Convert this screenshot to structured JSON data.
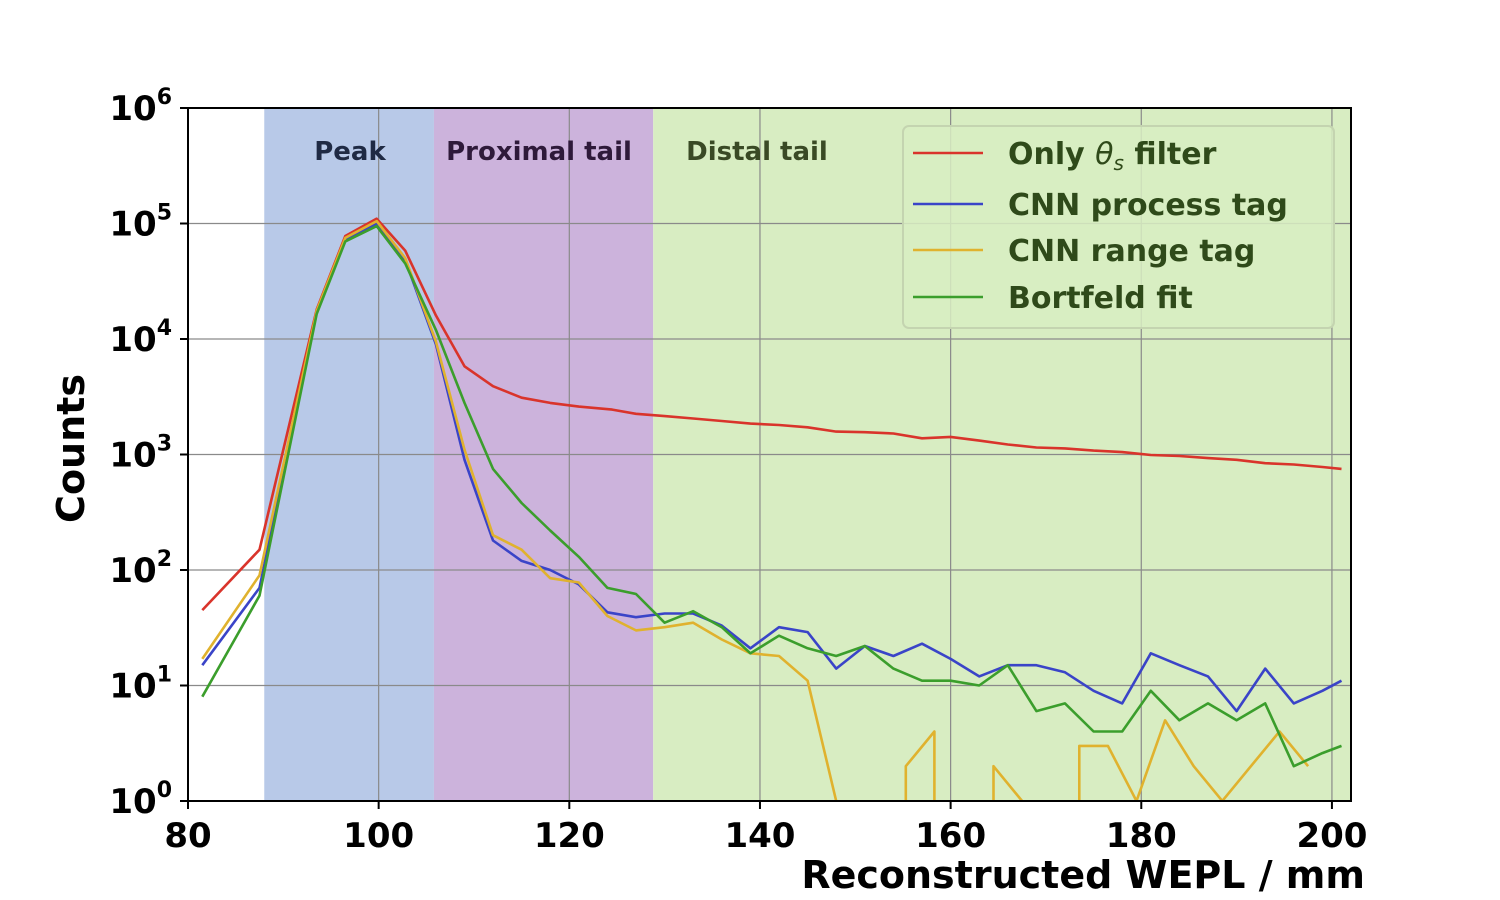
{
  "chart_data": {
    "type": "line",
    "xlabel": "Reconstructed WEPL / mm",
    "ylabel": "Counts",
    "xlim": [
      80,
      202
    ],
    "ylim": [
      1,
      1000000
    ],
    "yscale": "log",
    "grid": true,
    "legend_position": "top-right",
    "x_ticks": [
      "80",
      "100",
      "120",
      "140",
      "160",
      "180",
      "200"
    ],
    "y_ticks": [
      {
        "base": "10",
        "exp": "0"
      },
      {
        "base": "10",
        "exp": "1"
      },
      {
        "base": "10",
        "exp": "2"
      },
      {
        "base": "10",
        "exp": "3"
      },
      {
        "base": "10",
        "exp": "4"
      },
      {
        "base": "10",
        "exp": "5"
      },
      {
        "base": "10",
        "exp": "6"
      }
    ],
    "regions": [
      {
        "label": "Peak",
        "x0": 88,
        "x1": 105.8,
        "color": "#b8c9e8",
        "label_color": "#1f2a44"
      },
      {
        "label": "Proximal tail",
        "x0": 105.8,
        "x1": 128.8,
        "color": "#ccb3dc",
        "label_color": "#2e1a3a"
      },
      {
        "label": "Distal tail",
        "x0": 128.8,
        "x1": 202,
        "color": "#d8edc2",
        "label_color": "#3a4a25"
      }
    ],
    "series": [
      {
        "name": "Only θs filter",
        "color": "#d9342b",
        "x": [
          81.5,
          87.5,
          93.5,
          96.5,
          99.8,
          102.8,
          106,
          109,
          112,
          115,
          118,
          121,
          124.5,
          127,
          130,
          133,
          136,
          139,
          142,
          145,
          148,
          151,
          154,
          157,
          160,
          163,
          166,
          169,
          172,
          175,
          178,
          181,
          184,
          187,
          190,
          193,
          196,
          199,
          201
        ],
        "y": [
          45,
          150,
          18000,
          78000,
          110000,
          58000,
          16000,
          5800,
          3900,
          3100,
          2800,
          2600,
          2450,
          2250,
          2150,
          2050,
          1950,
          1850,
          1800,
          1720,
          1580,
          1560,
          1520,
          1380,
          1420,
          1320,
          1220,
          1150,
          1130,
          1080,
          1050,
          990,
          970,
          930,
          900,
          840,
          820,
          780,
          750
        ]
      },
      {
        "name": "CNN process tag",
        "color": "#3a44c8",
        "x": [
          81.5,
          87.5,
          93.5,
          96.5,
          99.8,
          102.8,
          106,
          109,
          112,
          115,
          118,
          121,
          124,
          127,
          130,
          133,
          136,
          139,
          142,
          145,
          148,
          151,
          154,
          157,
          160,
          163,
          166,
          169,
          172,
          175,
          178,
          181,
          184,
          187,
          190,
          193,
          196,
          199,
          201
        ],
        "y": [
          15,
          70,
          17000,
          73000,
          100000,
          48000,
          9000,
          900,
          180,
          120,
          100,
          75,
          43,
          39,
          42,
          42,
          33,
          21,
          32,
          29,
          14,
          22,
          18,
          23,
          17,
          12,
          15,
          15,
          13,
          9,
          7,
          19,
          15,
          12,
          6,
          14,
          7,
          9,
          11
        ]
      },
      {
        "name": "CNN range tag",
        "color": "#e0b22e",
        "x": [
          81.5,
          87.5,
          93.5,
          96.5,
          99.8,
          102.8,
          106,
          109,
          112,
          115,
          118,
          121,
          124,
          127,
          130,
          133,
          136,
          139,
          142,
          145,
          148
        ],
        "y": [
          17,
          90,
          17500,
          75000,
          105000,
          50000,
          9500,
          1100,
          200,
          150,
          85,
          78,
          40,
          30,
          32,
          35,
          25,
          19,
          18,
          11,
          1
        ],
        "segments": [
          {
            "x": [
              155.3,
              155.3,
              158.3,
              158.3
            ],
            "y": [
              1,
              2,
              4,
              1
            ]
          },
          {
            "x": [
              164.5,
              164.5,
              167.5
            ],
            "y": [
              1,
              2,
              1
            ]
          },
          {
            "x": [
              173.5,
              173.5,
              176.5,
              179.5,
              182.5,
              185.5,
              188.5,
              191.5,
              194.5,
              197.5
            ],
            "y": [
              1,
              3,
              3,
              1,
              5,
              2,
              1,
              2,
              4,
              2
            ]
          }
        ]
      },
      {
        "name": "Bortfeld fit",
        "color": "#3b9e2c",
        "x": [
          81.5,
          87.5,
          93.5,
          96.5,
          99.8,
          102.8,
          106,
          109,
          112,
          115,
          118,
          121,
          124,
          127,
          130,
          133,
          136,
          139,
          142,
          145,
          148,
          151,
          154,
          157,
          160,
          163,
          166,
          169,
          172,
          175,
          178,
          181,
          184,
          187,
          190,
          193,
          196,
          199,
          201
        ],
        "y": [
          8,
          60,
          16500,
          70000,
          95000,
          45000,
          12000,
          2800,
          750,
          380,
          220,
          130,
          70,
          62,
          35,
          44,
          32,
          19,
          27,
          21,
          18,
          22,
          14,
          11,
          11,
          10,
          15,
          6,
          7,
          4,
          4,
          9,
          5,
          7,
          5,
          7,
          2,
          2.6,
          3
        ]
      }
    ]
  }
}
